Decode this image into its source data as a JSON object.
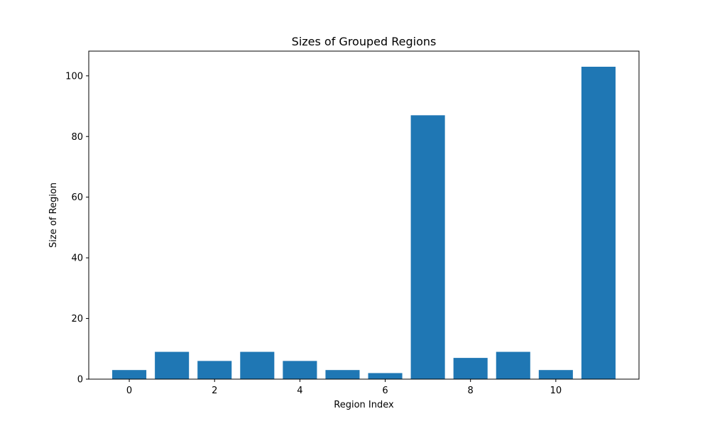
{
  "chart_data": {
    "type": "bar",
    "title": "Sizes of Grouped Regions",
    "xlabel": "Region Index",
    "ylabel": "Size of Region",
    "x": [
      0,
      1,
      2,
      3,
      4,
      5,
      6,
      7,
      8,
      9,
      10,
      11
    ],
    "values": [
      3,
      9,
      6,
      9,
      6,
      3,
      2,
      87,
      7,
      9,
      3,
      103
    ],
    "xticks": [
      0,
      2,
      4,
      6,
      8,
      10
    ],
    "yticks": [
      0,
      20,
      40,
      60,
      80,
      100
    ],
    "xlim": [
      -0.95,
      11.95
    ],
    "ylim": [
      0,
      108.15
    ],
    "bar_width": 0.8,
    "bar_color": "#1f77b4",
    "grid": false,
    "legend": "none"
  }
}
